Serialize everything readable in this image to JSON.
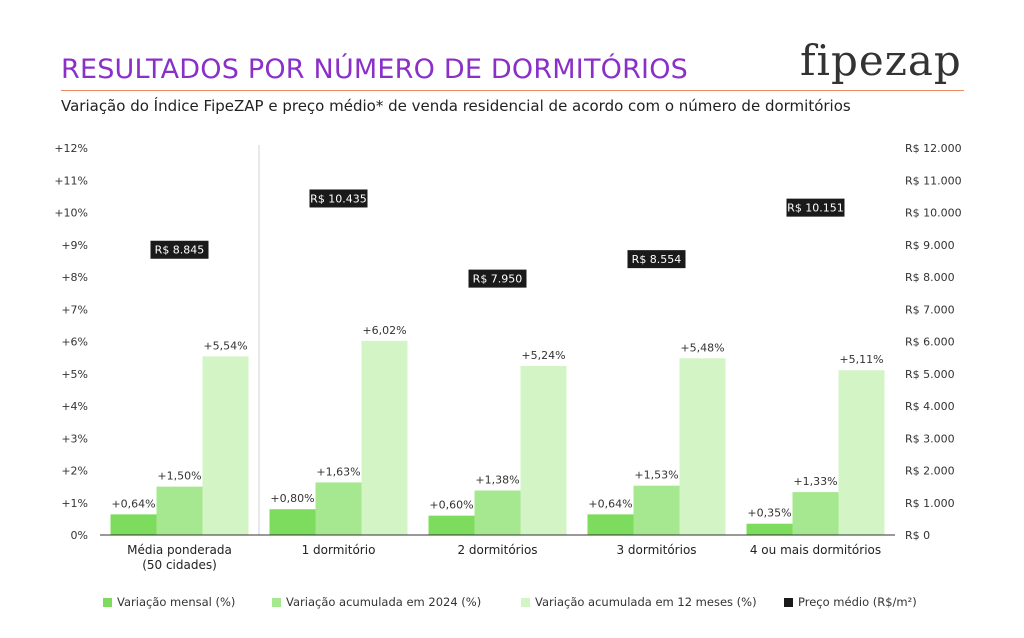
{
  "header": {
    "title": "RESULTADOS POR NÚMERO DE DORMITÓRIOS",
    "subtitle": "Variação do Índice FipeZAP e preço médio* de venda residencial de acordo com o número de dormitórios",
    "logo": "fipezap"
  },
  "colors": {
    "monthly": "#7ddc5e",
    "ytd": "#a6e88f",
    "yoy": "#d3f5c6",
    "price_box": "#1a1a1a",
    "title": "#8b2fc9",
    "rule": "#f08a5d"
  },
  "chart_data": {
    "type": "bar",
    "categories": [
      "Média ponderada\n(50 cidades)",
      "1 dormitório",
      "2 dormitórios",
      "3 dormitórios",
      "4 ou mais dormitórios"
    ],
    "series": [
      {
        "name": "Variação mensal (%)",
        "values": [
          0.64,
          0.8,
          0.6,
          0.64,
          0.35
        ],
        "labels": [
          "+0,64%",
          "+0,80%",
          "+0,60%",
          "+0,64%",
          "+0,35%"
        ]
      },
      {
        "name": "Variação acumulada em 2024 (%)",
        "values": [
          1.5,
          1.63,
          1.38,
          1.53,
          1.33
        ],
        "labels": [
          "+1,50%",
          "+1,63%",
          "+1,38%",
          "+1,53%",
          "+1,33%"
        ]
      },
      {
        "name": "Variação acumulada em 12 meses (%)",
        "values": [
          5.54,
          6.02,
          5.24,
          5.48,
          5.11
        ],
        "labels": [
          "+5,54%",
          "+6,02%",
          "+5,24%",
          "+5,48%",
          "+5,11%"
        ]
      },
      {
        "name": "Preço médio (R$/m²)",
        "values": [
          8845,
          10435,
          7950,
          8554,
          10151
        ],
        "labels": [
          "R$ 8.845",
          "R$ 10.435",
          "R$ 7.950",
          "R$ 8.554",
          "R$ 10.151"
        ]
      }
    ],
    "ylim": [
      0,
      12
    ],
    "y2lim": [
      0,
      12000
    ],
    "yticks": [
      "0%",
      "+1%",
      "+2%",
      "+3%",
      "+4%",
      "+5%",
      "+6%",
      "+7%",
      "+8%",
      "+9%",
      "+10%",
      "+11%",
      "+12%"
    ],
    "y2ticks": [
      "R$ 0",
      "R$ 1.000",
      "R$ 2.000",
      "R$ 3.000",
      "R$ 4.000",
      "R$ 5.000",
      "R$ 6.000",
      "R$ 7.000",
      "R$ 8.000",
      "R$ 9.000",
      "R$ 10.000",
      "R$ 11.000",
      "R$ 12.000"
    ],
    "legend": "bottom",
    "grid": false
  }
}
